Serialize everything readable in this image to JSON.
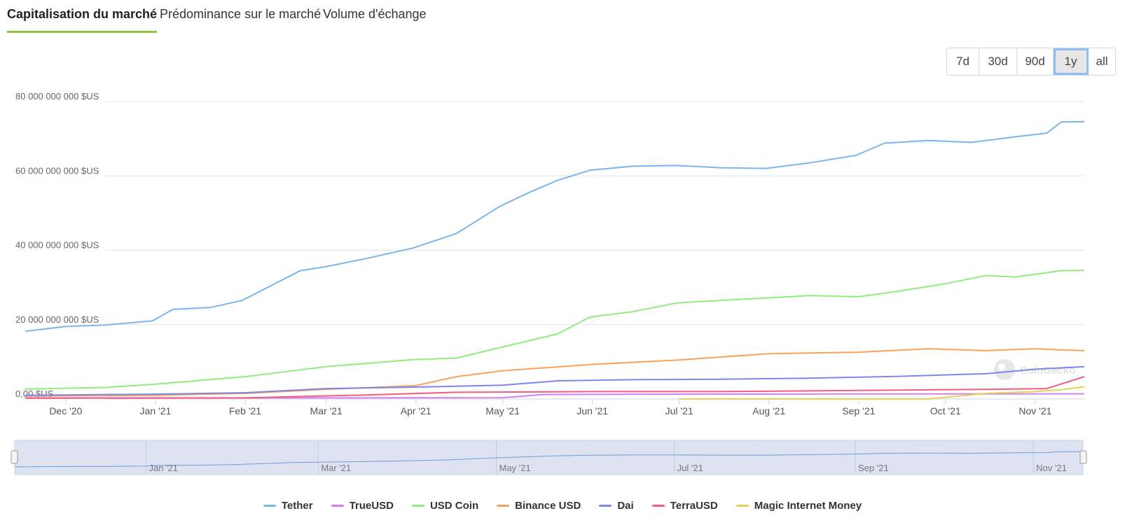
{
  "tabs": [
    {
      "label": "Capitalisation du marché",
      "active": true
    },
    {
      "label": "Prédominance sur le marché",
      "active": false
    },
    {
      "label": "Volume d'échange",
      "active": false
    }
  ],
  "accent_color": "#8dc63f",
  "range_buttons": [
    {
      "label": "7d",
      "active": false
    },
    {
      "label": "30d",
      "active": false
    },
    {
      "label": "90d",
      "active": false
    },
    {
      "label": "1y",
      "active": true
    },
    {
      "label": "all",
      "active": false
    }
  ],
  "watermark": "CoinGecko",
  "chart_data": {
    "type": "line",
    "ylim": [
      0,
      80000000000
    ],
    "yticks": [
      {
        "value": 0,
        "label": "0,00 $US"
      },
      {
        "value": 20000000000,
        "label": "20 000 000 000 $US"
      },
      {
        "value": 40000000000,
        "label": "40 000 000 000 $US"
      },
      {
        "value": 60000000000,
        "label": "60 000 000 000 $US"
      },
      {
        "value": 80000000000,
        "label": "80 000 000 000 $US"
      }
    ],
    "xlim": [
      "2020-11-17",
      "2021-11-18"
    ],
    "xticks": [
      {
        "date": "2020-12-01",
        "label": "Dec '20"
      },
      {
        "date": "2021-01-01",
        "label": "Jan '21"
      },
      {
        "date": "2021-02-01",
        "label": "Feb '21"
      },
      {
        "date": "2021-03-01",
        "label": "Mar '21"
      },
      {
        "date": "2021-04-01",
        "label": "Apr '21"
      },
      {
        "date": "2021-05-01",
        "label": "May '21"
      },
      {
        "date": "2021-06-01",
        "label": "Jun '21"
      },
      {
        "date": "2021-07-01",
        "label": "Jul '21"
      },
      {
        "date": "2021-08-01",
        "label": "Aug '21"
      },
      {
        "date": "2021-09-01",
        "label": "Sep '21"
      },
      {
        "date": "2021-10-01",
        "label": "Oct '21"
      },
      {
        "date": "2021-11-01",
        "label": "Nov '21"
      }
    ],
    "grid": true,
    "legend_position": "bottom",
    "navigator_labels": [
      "Jan '21",
      "Mar '21",
      "May '21",
      "Jul '21",
      "Sep '21",
      "Nov '21"
    ],
    "series": [
      {
        "name": "Tether",
        "color": "#7cb5ec",
        "points": [
          [
            "2020-11-17",
            18200000000.0
          ],
          [
            "2020-12-01",
            19500000000.0
          ],
          [
            "2020-12-15",
            19900000000.0
          ],
          [
            "2020-12-31",
            21000000000.0
          ],
          [
            "2021-01-07",
            24100000000.0
          ],
          [
            "2021-01-20",
            24600000000.0
          ],
          [
            "2021-01-31",
            26500000000.0
          ],
          [
            "2021-02-10",
            30500000000.0
          ],
          [
            "2021-02-20",
            34500000000.0
          ],
          [
            "2021-03-01",
            35600000000.0
          ],
          [
            "2021-03-15",
            37800000000.0
          ],
          [
            "2021-03-31",
            40600000000.0
          ],
          [
            "2021-04-15",
            44500000000.0
          ],
          [
            "2021-04-30",
            51800000000.0
          ],
          [
            "2021-05-10",
            55500000000.0
          ],
          [
            "2021-05-20",
            58800000000.0
          ],
          [
            "2021-05-31",
            61500000000.0
          ],
          [
            "2021-06-15",
            62600000000.0
          ],
          [
            "2021-06-30",
            62800000000.0
          ],
          [
            "2021-07-15",
            62200000000.0
          ],
          [
            "2021-07-31",
            62000000000.0
          ],
          [
            "2021-08-15",
            63500000000.0
          ],
          [
            "2021-08-31",
            65500000000.0
          ],
          [
            "2021-09-10",
            68800000000.0
          ],
          [
            "2021-09-25",
            69500000000.0
          ],
          [
            "2021-10-10",
            69000000000.0
          ],
          [
            "2021-10-25",
            70500000000.0
          ],
          [
            "2021-11-05",
            71500000000.0
          ],
          [
            "2021-11-10",
            74500000000.0
          ],
          [
            "2021-11-18",
            74600000000.0
          ]
        ]
      },
      {
        "name": "TrueUSD",
        "color": "#d580f0",
        "points": [
          [
            "2020-11-17",
            300000000.0
          ],
          [
            "2021-03-01",
            300000000.0
          ],
          [
            "2021-05-01",
            350000000.0
          ],
          [
            "2021-05-15",
            1200000000.0
          ],
          [
            "2021-07-01",
            1300000000.0
          ],
          [
            "2021-09-01",
            1350000000.0
          ],
          [
            "2021-11-18",
            1400000000.0
          ]
        ]
      },
      {
        "name": "USD Coin",
        "color": "#90ed7d",
        "points": [
          [
            "2020-11-17",
            2700000000.0
          ],
          [
            "2020-12-15",
            3100000000.0
          ],
          [
            "2021-01-01",
            4000000000.0
          ],
          [
            "2021-02-01",
            6000000000.0
          ],
          [
            "2021-03-01",
            8700000000.0
          ],
          [
            "2021-03-31",
            10600000000.0
          ],
          [
            "2021-04-15",
            11000000000.0
          ],
          [
            "2021-05-01",
            14000000000.0
          ],
          [
            "2021-05-20",
            17500000000.0
          ],
          [
            "2021-05-31",
            22000000000.0
          ],
          [
            "2021-06-15",
            23500000000.0
          ],
          [
            "2021-06-30",
            25800000000.0
          ],
          [
            "2021-07-15",
            26500000000.0
          ],
          [
            "2021-08-01",
            27200000000.0
          ],
          [
            "2021-08-15",
            27800000000.0
          ],
          [
            "2021-09-01",
            27500000000.0
          ],
          [
            "2021-09-15",
            29000000000.0
          ],
          [
            "2021-10-01",
            31000000000.0
          ],
          [
            "2021-10-15",
            33200000000.0
          ],
          [
            "2021-10-25",
            32800000000.0
          ],
          [
            "2021-11-10",
            34500000000.0
          ],
          [
            "2021-11-18",
            34600000000.0
          ]
        ]
      },
      {
        "name": "Binance USD",
        "color": "#f7a35c",
        "points": [
          [
            "2020-11-17",
            800000000.0
          ],
          [
            "2021-01-01",
            1000000000.0
          ],
          [
            "2021-02-01",
            1500000000.0
          ],
          [
            "2021-03-01",
            2600000000.0
          ],
          [
            "2021-04-01",
            3600000000.0
          ],
          [
            "2021-04-15",
            6000000000.0
          ],
          [
            "2021-05-01",
            7600000000.0
          ],
          [
            "2021-06-01",
            9300000000.0
          ],
          [
            "2021-07-01",
            10500000000.0
          ],
          [
            "2021-08-01",
            12200000000.0
          ],
          [
            "2021-09-01",
            12600000000.0
          ],
          [
            "2021-09-25",
            13500000000.0
          ],
          [
            "2021-10-15",
            13000000000.0
          ],
          [
            "2021-11-01",
            13500000000.0
          ],
          [
            "2021-11-10",
            13200000000.0
          ],
          [
            "2021-11-18",
            13000000000.0
          ]
        ]
      },
      {
        "name": "Dai",
        "color": "#8085e9",
        "points": [
          [
            "2020-11-17",
            1000000000.0
          ],
          [
            "2021-01-01",
            1300000000.0
          ],
          [
            "2021-02-01",
            1700000000.0
          ],
          [
            "2021-03-01",
            2800000000.0
          ],
          [
            "2021-04-01",
            3200000000.0
          ],
          [
            "2021-05-01",
            3700000000.0
          ],
          [
            "2021-05-20",
            4900000000.0
          ],
          [
            "2021-06-15",
            5200000000.0
          ],
          [
            "2021-07-15",
            5300000000.0
          ],
          [
            "2021-08-15",
            5600000000.0
          ],
          [
            "2021-09-15",
            6100000000.0
          ],
          [
            "2021-10-15",
            6800000000.0
          ],
          [
            "2021-11-01",
            8000000000.0
          ],
          [
            "2021-11-18",
            8700000000.0
          ]
        ]
      },
      {
        "name": "TerraUSD",
        "color": "#f15c80",
        "points": [
          [
            "2020-11-17",
            200000000.0
          ],
          [
            "2021-02-01",
            300000000.0
          ],
          [
            "2021-03-15",
            1100000000.0
          ],
          [
            "2021-04-15",
            1800000000.0
          ],
          [
            "2021-06-01",
            2000000000.0
          ],
          [
            "2021-07-15",
            2000000000.0
          ],
          [
            "2021-09-01",
            2300000000.0
          ],
          [
            "2021-10-15",
            2600000000.0
          ],
          [
            "2021-11-05",
            2800000000.0
          ],
          [
            "2021-11-18",
            6000000000.0
          ]
        ]
      },
      {
        "name": "Magic Internet Money",
        "color": "#e4d354",
        "points": [
          [
            "2021-07-01",
            0.0
          ],
          [
            "2021-09-25",
            0.0
          ],
          [
            "2021-10-15",
            1500000000.0
          ],
          [
            "2021-11-01",
            2000000000.0
          ],
          [
            "2021-11-10",
            2500000000.0
          ],
          [
            "2021-11-18",
            3300000000.0
          ]
        ]
      }
    ]
  }
}
